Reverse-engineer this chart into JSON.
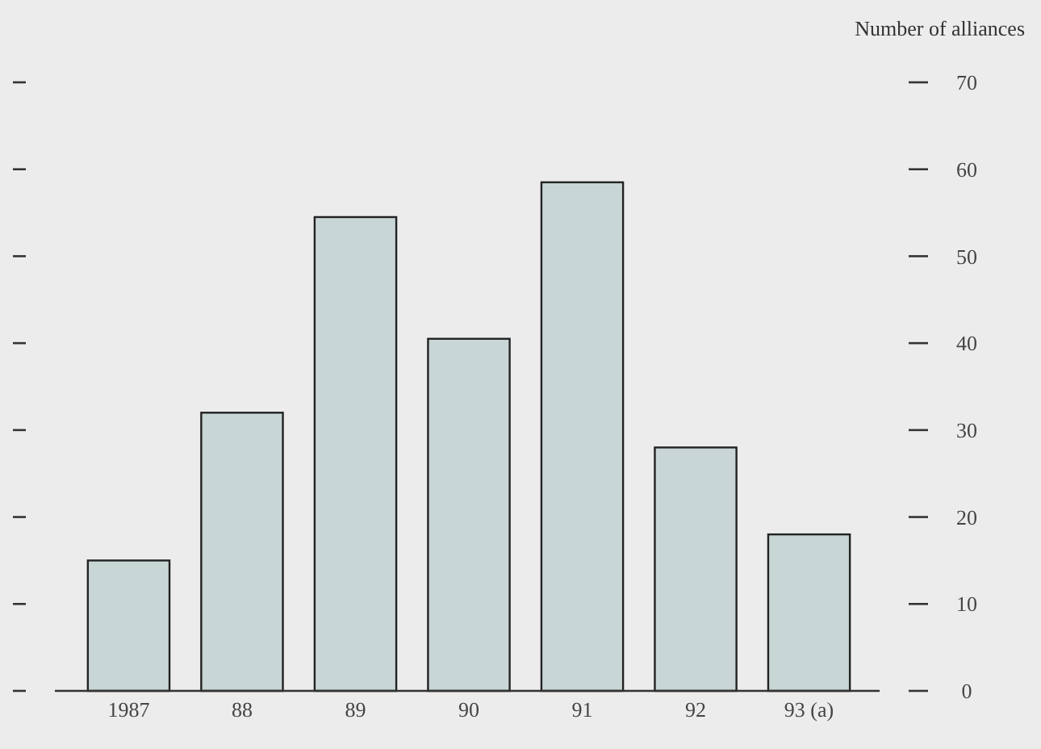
{
  "chart_data": {
    "type": "bar",
    "ylabel": "Number of alliances",
    "categories": [
      "1987",
      "88",
      "89",
      "90",
      "91",
      "92",
      "93 (a)"
    ],
    "values": [
      15,
      32,
      54.5,
      40.5,
      58.5,
      28,
      18
    ],
    "color": "#c8d6d6",
    "ylim": [
      0,
      70
    ],
    "yticks": [
      0,
      10,
      20,
      30,
      40,
      50,
      60,
      70
    ],
    "grid": false
  }
}
